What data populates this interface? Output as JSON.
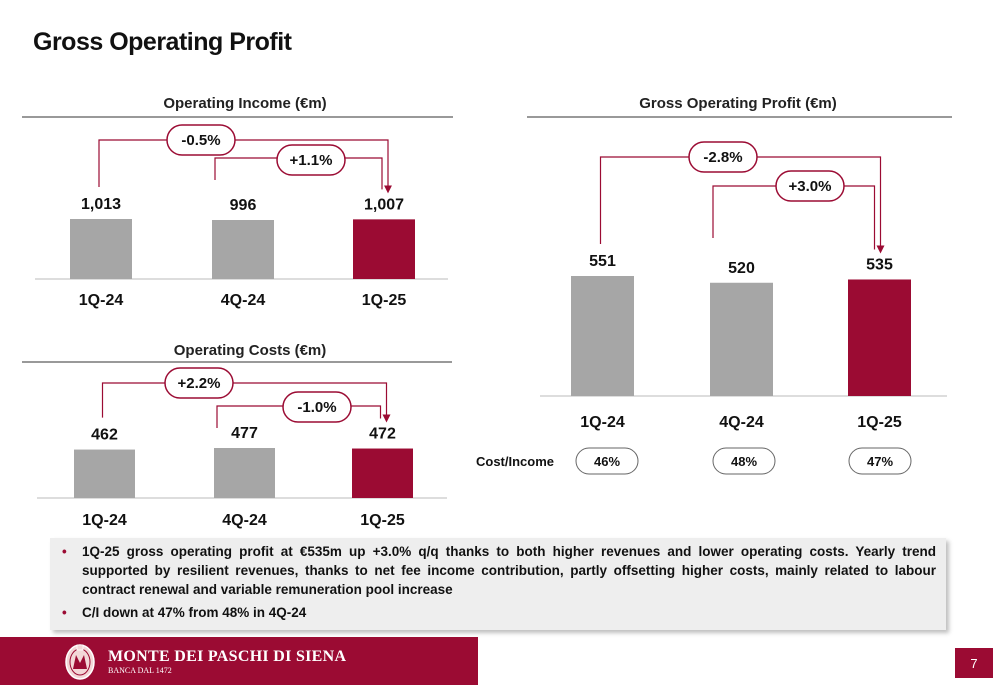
{
  "page": {
    "title": "Gross Operating Profit",
    "number": "7"
  },
  "chart_data": [
    {
      "type": "bar",
      "title": "Operating Income (€m)",
      "categories": [
        "1Q-24",
        "4Q-24",
        "1Q-25"
      ],
      "values": [
        1013,
        996,
        1007
      ],
      "value_labels": [
        "1,013",
        "996",
        "1,007"
      ],
      "deltas": [
        {
          "label": "-0.5%",
          "from": "1Q-24",
          "to": "1Q-25"
        },
        {
          "label": "+1.1%",
          "from": "4Q-24",
          "to": "1Q-25"
        }
      ],
      "colors": [
        "#a6a6a6",
        "#a6a6a6",
        "#9b0b33"
      ]
    },
    {
      "type": "bar",
      "title": "Operating Costs (€m)",
      "categories": [
        "1Q-24",
        "4Q-24",
        "1Q-25"
      ],
      "values": [
        462,
        477,
        472
      ],
      "value_labels": [
        "462",
        "477",
        "472"
      ],
      "deltas": [
        {
          "label": "+2.2%",
          "from": "1Q-24",
          "to": "1Q-25"
        },
        {
          "label": "-1.0%",
          "from": "4Q-24",
          "to": "1Q-25"
        }
      ],
      "colors": [
        "#a6a6a6",
        "#a6a6a6",
        "#9b0b33"
      ]
    },
    {
      "type": "bar",
      "title": "Gross Operating Profit (€m)",
      "categories": [
        "1Q-24",
        "4Q-24",
        "1Q-25"
      ],
      "values": [
        551,
        520,
        535
      ],
      "value_labels": [
        "551",
        "520",
        "535"
      ],
      "deltas": [
        {
          "label": "-2.8%",
          "from": "1Q-24",
          "to": "1Q-25"
        },
        {
          "label": "+3.0%",
          "from": "4Q-24",
          "to": "1Q-25"
        }
      ],
      "colors": [
        "#a6a6a6",
        "#a6a6a6",
        "#9b0b33"
      ],
      "cost_income": {
        "label": "Cost/Income",
        "values": [
          "46%",
          "48%",
          "47%"
        ]
      }
    }
  ],
  "bullets": [
    "1Q-25 gross operating profit at €535m up +3.0% q/q thanks to both higher revenues and lower operating costs. Yearly trend supported by resilient revenues, thanks to net fee income contribution, partly offsetting higher costs, mainly related to labour contract renewal and variable remuneration pool increase",
    "C/I down at 47% from 48% in 4Q-24"
  ],
  "footer": {
    "bank_name": "MONTE DEI PASCHI DI SIENA",
    "tagline": "BANCA DAL 1472"
  },
  "colors": {
    "accent": "#9b0b33",
    "bar_grey": "#a6a6a6"
  }
}
